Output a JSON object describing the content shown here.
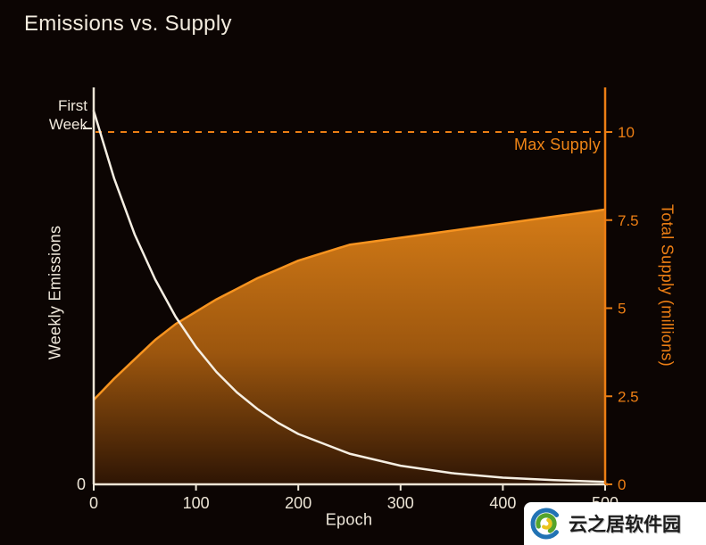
{
  "title": "Emissions vs. Supply",
  "watermark": {
    "text": "云之居软件园"
  },
  "colors": {
    "background": "#0c0503",
    "cream": "#ede5d6",
    "orange": "#ec7e14",
    "area_top": "#db8018",
    "area_mid": "#9c560e",
    "area_bottom": "#2e1504"
  },
  "chart_data": {
    "type": "line",
    "title": "Emissions vs. Supply",
    "xlabel": "Epoch",
    "xlim": [
      0,
      500
    ],
    "x_ticks": [
      0,
      100,
      200,
      300,
      400,
      500
    ],
    "grid": false,
    "legend": "none",
    "left_axis": {
      "label": "Weekly Emissions",
      "ticks": [
        0
      ],
      "scale_note": "relative scale, only 0 labeled; peak marked as First Week"
    },
    "right_axis": {
      "label": "Total Supply (millions)",
      "ticks": [
        0,
        2.5,
        5,
        7.5,
        10
      ]
    },
    "annotations": {
      "first_week": "First Week",
      "max_supply": {
        "label": "Max Supply",
        "value": 10,
        "style": "dashed"
      }
    },
    "series": [
      {
        "name": "Weekly Emissions",
        "axis": "left",
        "color": "#f6efe3",
        "area": false,
        "x": [
          0,
          20,
          40,
          60,
          80,
          100,
          120,
          140,
          160,
          180,
          200,
          250,
          300,
          350,
          400,
          450,
          500
        ],
        "y": [
          10.6,
          8.68,
          7.1,
          5.82,
          4.76,
          3.9,
          3.19,
          2.61,
          2.14,
          1.75,
          1.43,
          0.87,
          0.53,
          0.32,
          0.19,
          0.12,
          0.07
        ]
      },
      {
        "name": "Total Supply",
        "axis": "right",
        "color": "#f79420",
        "area": true,
        "x": [
          0,
          20,
          40,
          60,
          80,
          100,
          120,
          140,
          160,
          180,
          200,
          250,
          300,
          350,
          400,
          450,
          500
        ],
        "y": [
          2.4,
          3.0,
          3.55,
          4.1,
          4.55,
          4.9,
          5.25,
          5.55,
          5.85,
          6.1,
          6.35,
          6.8,
          7.0,
          7.2,
          7.4,
          7.6,
          7.8
        ]
      }
    ]
  }
}
